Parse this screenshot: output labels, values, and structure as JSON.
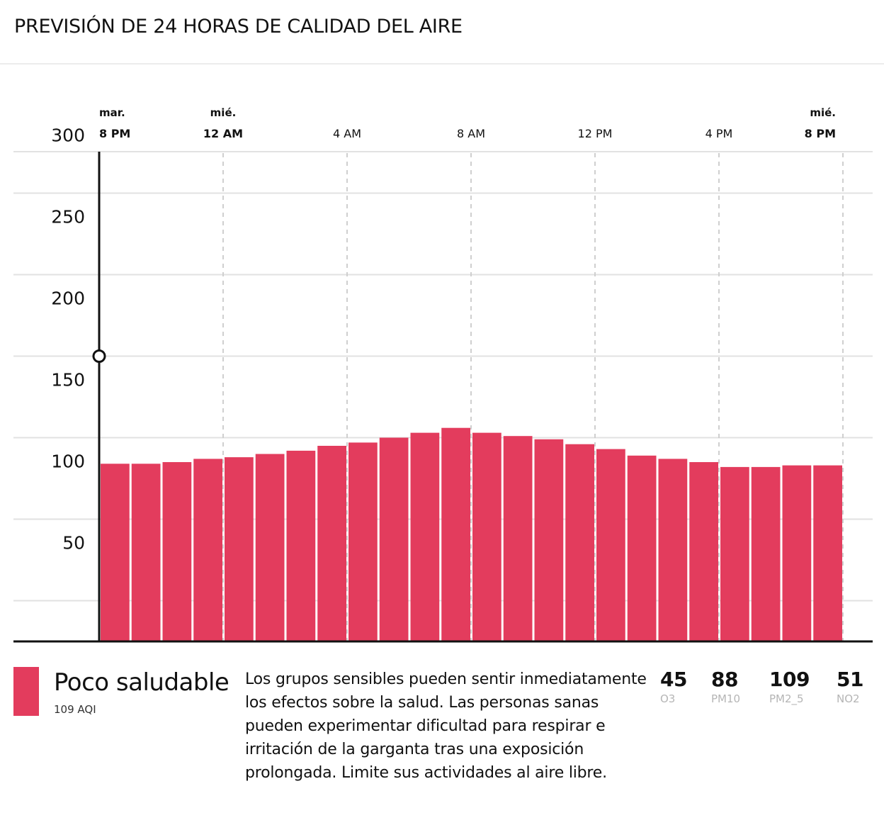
{
  "header": {
    "title": "PREVISIÓN DE 24 HORAS DE CALIDAD DEL AIRE"
  },
  "colors": {
    "bar": "#e33c5d",
    "axis": "#111111",
    "grid": "#e2e2e2",
    "vgrid": "#cfcfcf"
  },
  "chart_data": {
    "type": "bar",
    "title": "PREVISIÓN DE 24 HORAS DE CALIDAD DEL AIRE",
    "xlabel": "",
    "ylabel": "",
    "ylim": [
      0,
      300
    ],
    "yticks": [
      50,
      100,
      150,
      200,
      250,
      300
    ],
    "grid": true,
    "categories": [
      "8 PM",
      "9 PM",
      "10 PM",
      "11 PM",
      "12 AM",
      "1 AM",
      "2 AM",
      "3 AM",
      "4 AM",
      "5 AM",
      "6 AM",
      "7 AM",
      "8 AM",
      "9 AM",
      "10 AM",
      "11 AM",
      "12 PM",
      "1 PM",
      "2 PM",
      "3 PM",
      "4 PM",
      "5 PM",
      "6 PM",
      "7 PM"
    ],
    "values": [
      109,
      109,
      110,
      112,
      113,
      115,
      117,
      120,
      122,
      125,
      128,
      131,
      128,
      126,
      124,
      121,
      118,
      114,
      112,
      110,
      107,
      107,
      108,
      108
    ],
    "xticks": [
      {
        "day": "mar.",
        "time": "8 PM",
        "bold": true
      },
      {
        "day": "mié.",
        "time": "12 AM",
        "bold": true
      },
      {
        "day": "",
        "time": "4 AM",
        "bold": false
      },
      {
        "day": "",
        "time": "8 AM",
        "bold": false
      },
      {
        "day": "",
        "time": "12 PM",
        "bold": false
      },
      {
        "day": "",
        "time": "4 PM",
        "bold": false
      },
      {
        "day": "mié.",
        "time": "8 PM",
        "bold": true
      }
    ],
    "current_marker_value": 175
  },
  "summary": {
    "level": "Poco saludable",
    "aqi_label": "109 AQI",
    "advice": "Los grupos sensibles pueden sentir inmediatamente los efectos sobre la salud. Las personas sanas pueden experimentar dificultad para respirar e irritación de la garganta tras una exposición prolongada. Limite sus actividades al aire libre."
  },
  "pollutants": [
    {
      "value": "45",
      "label": "O3"
    },
    {
      "value": "88",
      "label": "PM10"
    },
    {
      "value": "109",
      "label": "PM2_5"
    },
    {
      "value": "51",
      "label": "NO2"
    }
  ]
}
